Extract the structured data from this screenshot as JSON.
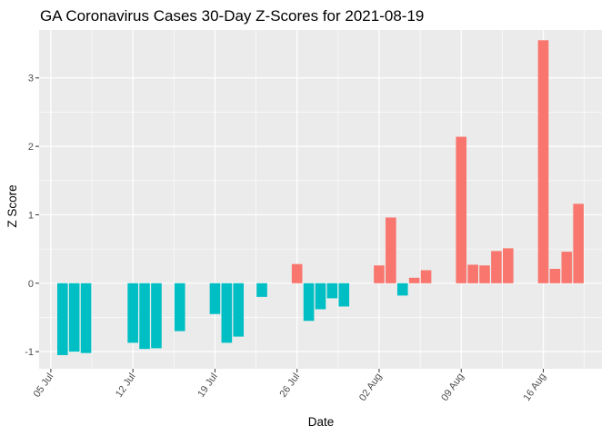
{
  "chart_data": {
    "type": "bar",
    "title": "GA Coronavirus Cases 30-Day Z-Scores for 2021-08-19",
    "xlabel": "Date",
    "ylabel": "Z Score",
    "x_ticks": [
      "05 Jul",
      "12 Jul",
      "19 Jul",
      "26 Jul",
      "02 Aug",
      "09 Aug",
      "16 Aug"
    ],
    "x_tick_dates": [
      "2021-07-05",
      "2021-07-12",
      "2021-07-19",
      "2021-07-26",
      "2021-08-02",
      "2021-08-09",
      "2021-08-16"
    ],
    "y_ticks": [
      -1,
      0,
      1,
      2,
      3
    ],
    "xlim": [
      "2021-07-04",
      "2021-08-21"
    ],
    "ylim": [
      -1.25,
      3.7
    ],
    "grid": true,
    "legend": "none",
    "colors": {
      "positive": "#F8766D",
      "negative": "#00BFC4",
      "panel": "#EBEBEB",
      "grid": "#FFFFFF"
    },
    "dates": [
      "2021-07-06",
      "2021-07-07",
      "2021-07-08",
      "2021-07-12",
      "2021-07-13",
      "2021-07-14",
      "2021-07-16",
      "2021-07-19",
      "2021-07-20",
      "2021-07-21",
      "2021-07-23",
      "2021-07-26",
      "2021-07-27",
      "2021-07-28",
      "2021-07-29",
      "2021-07-30",
      "2021-08-02",
      "2021-08-03",
      "2021-08-04",
      "2021-08-05",
      "2021-08-06",
      "2021-08-09",
      "2021-08-10",
      "2021-08-11",
      "2021-08-12",
      "2021-08-13",
      "2021-08-16",
      "2021-08-17",
      "2021-08-18",
      "2021-08-19"
    ],
    "values": [
      -1.05,
      -1.0,
      -1.02,
      -0.87,
      -0.96,
      -0.95,
      -0.7,
      -0.45,
      -0.87,
      -0.78,
      -0.2,
      0.28,
      -0.55,
      -0.38,
      -0.22,
      -0.34,
      0.26,
      0.96,
      -0.18,
      0.08,
      0.19,
      2.14,
      0.27,
      0.26,
      0.47,
      0.51,
      3.55,
      0.21,
      0.46,
      1.16
    ]
  }
}
